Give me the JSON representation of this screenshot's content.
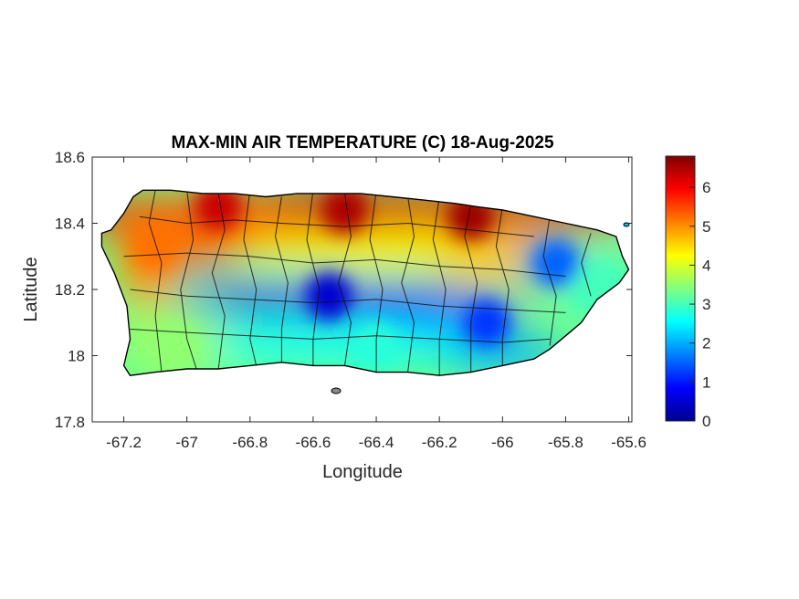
{
  "chart_data": {
    "type": "heatmap",
    "title": "MAX-MIN AIR TEMPERATURE (C) 18-Aug-2025",
    "xlabel": "Longitude",
    "ylabel": "Latitude",
    "xlim": [
      -67.3,
      -65.59
    ],
    "ylim": [
      17.8,
      18.6
    ],
    "x_ticks": [
      -67.2,
      -67,
      -66.8,
      -66.6,
      -66.4,
      -66.2,
      -66,
      -65.8,
      -65.6
    ],
    "x_tick_labels": [
      "-67.2",
      "-67",
      "-66.8",
      "-66.6",
      "-66.4",
      "-66.2",
      "-66",
      "-65.8",
      "-65.6"
    ],
    "y_ticks": [
      17.8,
      18,
      18.2,
      18.4,
      18.6
    ],
    "y_tick_labels": [
      "17.8",
      "18",
      "18.2",
      "18.4",
      "18.6"
    ],
    "colorbar": {
      "colormap": "jet",
      "clim": [
        0,
        6.8
      ],
      "ticks": [
        0,
        1,
        2,
        3,
        4,
        5,
        6
      ],
      "tick_labels": [
        "0",
        "1",
        "2",
        "3",
        "4",
        "5",
        "6"
      ],
      "colors": [
        "#00008f",
        "#0000ff",
        "#0080ff",
        "#00ffff",
        "#80ff80",
        "#ffff00",
        "#ff8000",
        "#ff0000",
        "#800000"
      ]
    },
    "grid": false,
    "region": "Puerto Rico",
    "island_outline": [
      [
        -67.27,
        18.37
      ],
      [
        -67.24,
        18.38
      ],
      [
        -67.2,
        18.43
      ],
      [
        -67.17,
        18.48
      ],
      [
        -67.14,
        18.5
      ],
      [
        -67.05,
        18.5
      ],
      [
        -66.95,
        18.49
      ],
      [
        -66.85,
        18.49
      ],
      [
        -66.75,
        18.48
      ],
      [
        -66.65,
        18.49
      ],
      [
        -66.55,
        18.49
      ],
      [
        -66.45,
        18.49
      ],
      [
        -66.35,
        18.48
      ],
      [
        -66.25,
        18.47
      ],
      [
        -66.15,
        18.46
      ],
      [
        -66.08,
        18.45
      ],
      [
        -66.0,
        18.44
      ],
      [
        -65.9,
        18.42
      ],
      [
        -65.8,
        18.4
      ],
      [
        -65.7,
        18.38
      ],
      [
        -65.64,
        18.36
      ],
      [
        -65.62,
        18.3
      ],
      [
        -65.6,
        18.26
      ],
      [
        -65.63,
        18.22
      ],
      [
        -65.7,
        18.17
      ],
      [
        -65.75,
        18.1
      ],
      [
        -65.8,
        18.06
      ],
      [
        -65.85,
        18.02
      ],
      [
        -65.9,
        17.99
      ],
      [
        -66.0,
        17.97
      ],
      [
        -66.1,
        17.95
      ],
      [
        -66.2,
        17.94
      ],
      [
        -66.3,
        17.95
      ],
      [
        -66.4,
        17.95
      ],
      [
        -66.5,
        17.97
      ],
      [
        -66.6,
        17.97
      ],
      [
        -66.7,
        17.98
      ],
      [
        -66.8,
        17.97
      ],
      [
        -66.9,
        17.96
      ],
      [
        -67.0,
        17.96
      ],
      [
        -67.1,
        17.95
      ],
      [
        -67.18,
        17.94
      ],
      [
        -67.2,
        17.97
      ],
      [
        -67.18,
        18.05
      ],
      [
        -67.19,
        18.15
      ],
      [
        -67.23,
        18.25
      ],
      [
        -67.27,
        18.33
      ]
    ],
    "value_regions": [
      {
        "lon": -66.5,
        "lat": 18.44,
        "value": 6.5
      },
      {
        "lon": -66.1,
        "lat": 18.42,
        "value": 6.6
      },
      {
        "lon": -66.9,
        "lat": 18.45,
        "value": 6.3
      },
      {
        "lon": -67.1,
        "lat": 18.33,
        "value": 5.2
      },
      {
        "lon": -66.55,
        "lat": 18.18,
        "value": 0.5
      },
      {
        "lon": -66.05,
        "lat": 18.1,
        "value": 1.2
      },
      {
        "lon": -65.83,
        "lat": 18.28,
        "value": 1.5
      },
      {
        "lon": -66.4,
        "lat": 18.03,
        "value": 2.8
      },
      {
        "lon": -67.05,
        "lat": 18.03,
        "value": 3.5
      },
      {
        "lon": -65.7,
        "lat": 18.2,
        "value": 3.0
      }
    ]
  }
}
